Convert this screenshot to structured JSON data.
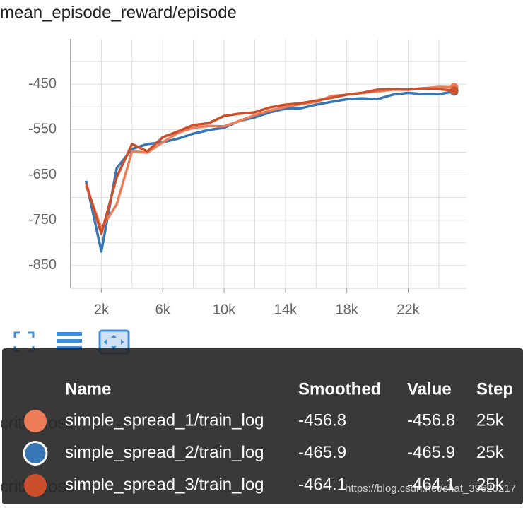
{
  "chart_data": {
    "type": "line",
    "title": "mean_episode_reward/episode",
    "x": [
      1000,
      2000,
      3000,
      4000,
      5000,
      6000,
      7000,
      8000,
      9000,
      10000,
      11000,
      12000,
      13000,
      14000,
      15000,
      16000,
      17000,
      18000,
      19000,
      20000,
      21000,
      22000,
      23000,
      24000,
      25000
    ],
    "series": [
      {
        "name": "simple_spread_1/train_log",
        "color": "#ec7d56",
        "values": [
          -674,
          -768,
          -715,
          -598,
          -601,
          -578,
          -557,
          -546,
          -542,
          -543,
          -531,
          -518,
          -508,
          -500,
          -494,
          -489,
          -476,
          -473,
          -469,
          -466,
          -462,
          -462,
          -459,
          -456,
          -456.8
        ]
      },
      {
        "name": "simple_spread_2/train_log",
        "color": "#3777b5",
        "values": [
          -663,
          -819,
          -635,
          -593,
          -582,
          -578,
          -570,
          -559,
          -551,
          -546,
          -531,
          -523,
          -512,
          -504,
          -503,
          -495,
          -489,
          -483,
          -481,
          -483,
          -473,
          -469,
          -472,
          -472,
          -465.9
        ]
      },
      {
        "name": "simple_spread_3/train_log",
        "color": "#cc4f2c",
        "values": [
          -668,
          -780,
          -655,
          -582,
          -598,
          -567,
          -554,
          -540,
          -536,
          -520,
          -515,
          -512,
          -501,
          -495,
          -492,
          -486,
          -480,
          -473,
          -469,
          -462,
          -461,
          -462,
          -459,
          -461,
          -464.1
        ]
      }
    ],
    "xlim": [
      0,
      25800
    ],
    "xticks": [
      {
        "value": 2000,
        "label": "2k"
      },
      {
        "value": 6000,
        "label": "6k"
      },
      {
        "value": 10000,
        "label": "10k"
      },
      {
        "value": 14000,
        "label": "14k"
      },
      {
        "value": 18000,
        "label": "18k"
      },
      {
        "value": 22000,
        "label": "22k"
      }
    ],
    "xgrid": [
      4000,
      8000,
      12000,
      16000,
      20000,
      24000
    ],
    "ylim": [
      -900,
      -350
    ],
    "yticks": [
      -450,
      -550,
      -650,
      -750,
      -850
    ],
    "ygrid": [
      -400,
      -500,
      -600,
      -700,
      -800
    ],
    "grid": true
  },
  "tooltip": {
    "columns": [
      "Name",
      "Smoothed",
      "Value",
      "Step"
    ],
    "rows": [
      {
        "smoothed": -456.8,
        "value": -456.8,
        "step": "25k"
      },
      {
        "smoothed": -465.9,
        "value": -465.9,
        "step": "25k"
      },
      {
        "smoothed": -464.1,
        "value": -464.1,
        "step": "25k"
      }
    ]
  },
  "background_label": "critic_loss",
  "watermark": "https://blog.csdn.net/shat_39620217"
}
